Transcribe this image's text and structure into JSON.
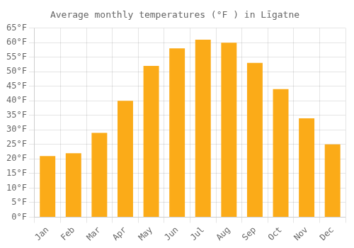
{
  "chart_data": {
    "type": "bar",
    "title": "Average monthly temperatures (°F ) in Līgatne",
    "categories": [
      "Jan",
      "Feb",
      "Mar",
      "Apr",
      "May",
      "Jun",
      "Jul",
      "Aug",
      "Sep",
      "Oct",
      "Nov",
      "Dec"
    ],
    "values": [
      21,
      22,
      29,
      40,
      52,
      58,
      61,
      60,
      53,
      44,
      34,
      25
    ],
    "color": "#FBAB18",
    "ylim": [
      0,
      65
    ],
    "yticks": [
      {
        "value": 0,
        "label": "0°F"
      },
      {
        "value": 5,
        "label": "5°F"
      },
      {
        "value": 10,
        "label": "10°F"
      },
      {
        "value": 15,
        "label": "15°F"
      },
      {
        "value": 20,
        "label": "20°F"
      },
      {
        "value": 25,
        "label": "25°F"
      },
      {
        "value": 30,
        "label": "30°F"
      },
      {
        "value": 35,
        "label": "35°F"
      },
      {
        "value": 40,
        "label": "40°F"
      },
      {
        "value": 45,
        "label": "45°F"
      },
      {
        "value": 50,
        "label": "50°F"
      },
      {
        "value": 55,
        "label": "55°F"
      },
      {
        "value": 60,
        "label": "60°F"
      },
      {
        "value": 65,
        "label": "65°F"
      }
    ],
    "grid": true
  }
}
